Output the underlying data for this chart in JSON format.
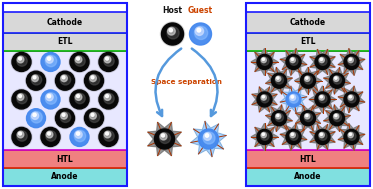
{
  "fig_width": 3.73,
  "fig_height": 1.89,
  "dpi": 100,
  "bg_color": "#ffffff",
  "cathode_color": "#d8d8d8",
  "cathode_border_outer": "#1a1aff",
  "cathode_label": "Cathode",
  "etl_color": "#d8d8d8",
  "etl_border": "#00bb00",
  "etl_label": "ETL",
  "emitter_zone_color": "#e8e8ff",
  "emitter_border": "#cc00cc",
  "htl_color": "#f08080",
  "htl_border": "#dd2200",
  "htl_label": "HTL",
  "anode_color": "#80e0e0",
  "anode_border": "#009999",
  "anode_label": "Anode",
  "host_label": "Host",
  "guest_label": "Guest",
  "space_sep_label": "Space separation",
  "host_dark": "#080808",
  "host_mid": "#555555",
  "host_light": "#cccccc",
  "guest_dark": "#4488ee",
  "guest_mid": "#88bbff",
  "guest_light": "#ccddff",
  "arrow_color": "#5599dd",
  "dendron_color": "#888888",
  "dendron_guest_color": "#99ccff",
  "dendron_line_color": "#aa3300"
}
